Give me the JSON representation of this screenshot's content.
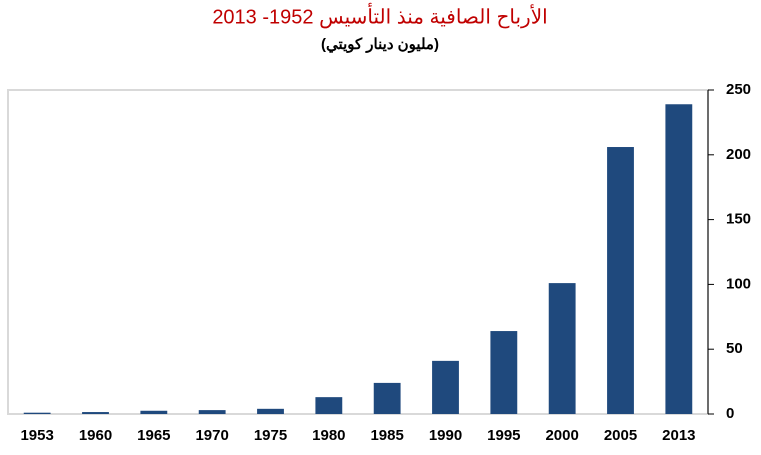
{
  "chart_data": {
    "type": "bar",
    "title": "الأرباح الصافية منذ التأسيس 1952- 2013",
    "subtitle": "(مليون دينار كويتي)",
    "categories": [
      "1953",
      "1960",
      "1965",
      "1970",
      "1975",
      "1980",
      "1985",
      "1990",
      "1995",
      "2000",
      "2005",
      "2013"
    ],
    "values": [
      1,
      1.5,
      2.5,
      3,
      4,
      13,
      24,
      41,
      64,
      101,
      206,
      239
    ],
    "color": "#1f497d",
    "ylim": [
      0,
      250
    ],
    "yticks": [
      0,
      50,
      100,
      150,
      200,
      250
    ],
    "grid": false
  }
}
